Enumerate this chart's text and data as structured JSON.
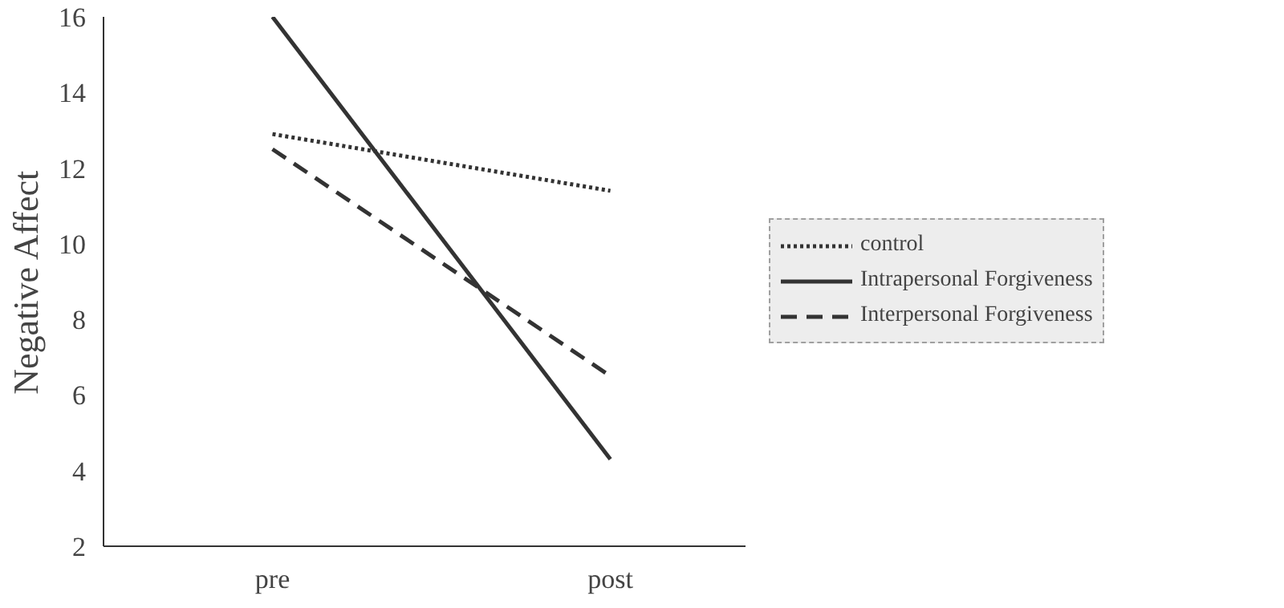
{
  "chart_data": {
    "type": "line",
    "ylabel": "Negative Affect",
    "categories": [
      "pre",
      "post"
    ],
    "series": [
      {
        "name": "control",
        "color": "#333333",
        "line_style": "dotted",
        "values": [
          12.9,
          11.4
        ]
      },
      {
        "name": "Intrapersonal Forgiveness",
        "color": "#333333",
        "line_style": "solid",
        "values": [
          16,
          4.3
        ]
      },
      {
        "name": "Interpersonal Forgiveness",
        "color": "#333333",
        "line_style": "dashed",
        "values": [
          12.5,
          6.5
        ]
      }
    ],
    "ylim": [
      2,
      16
    ],
    "yticks": [
      2,
      4,
      6,
      8,
      10,
      12,
      14,
      16
    ],
    "grid": false,
    "legend": "right",
    "marker": "none"
  }
}
